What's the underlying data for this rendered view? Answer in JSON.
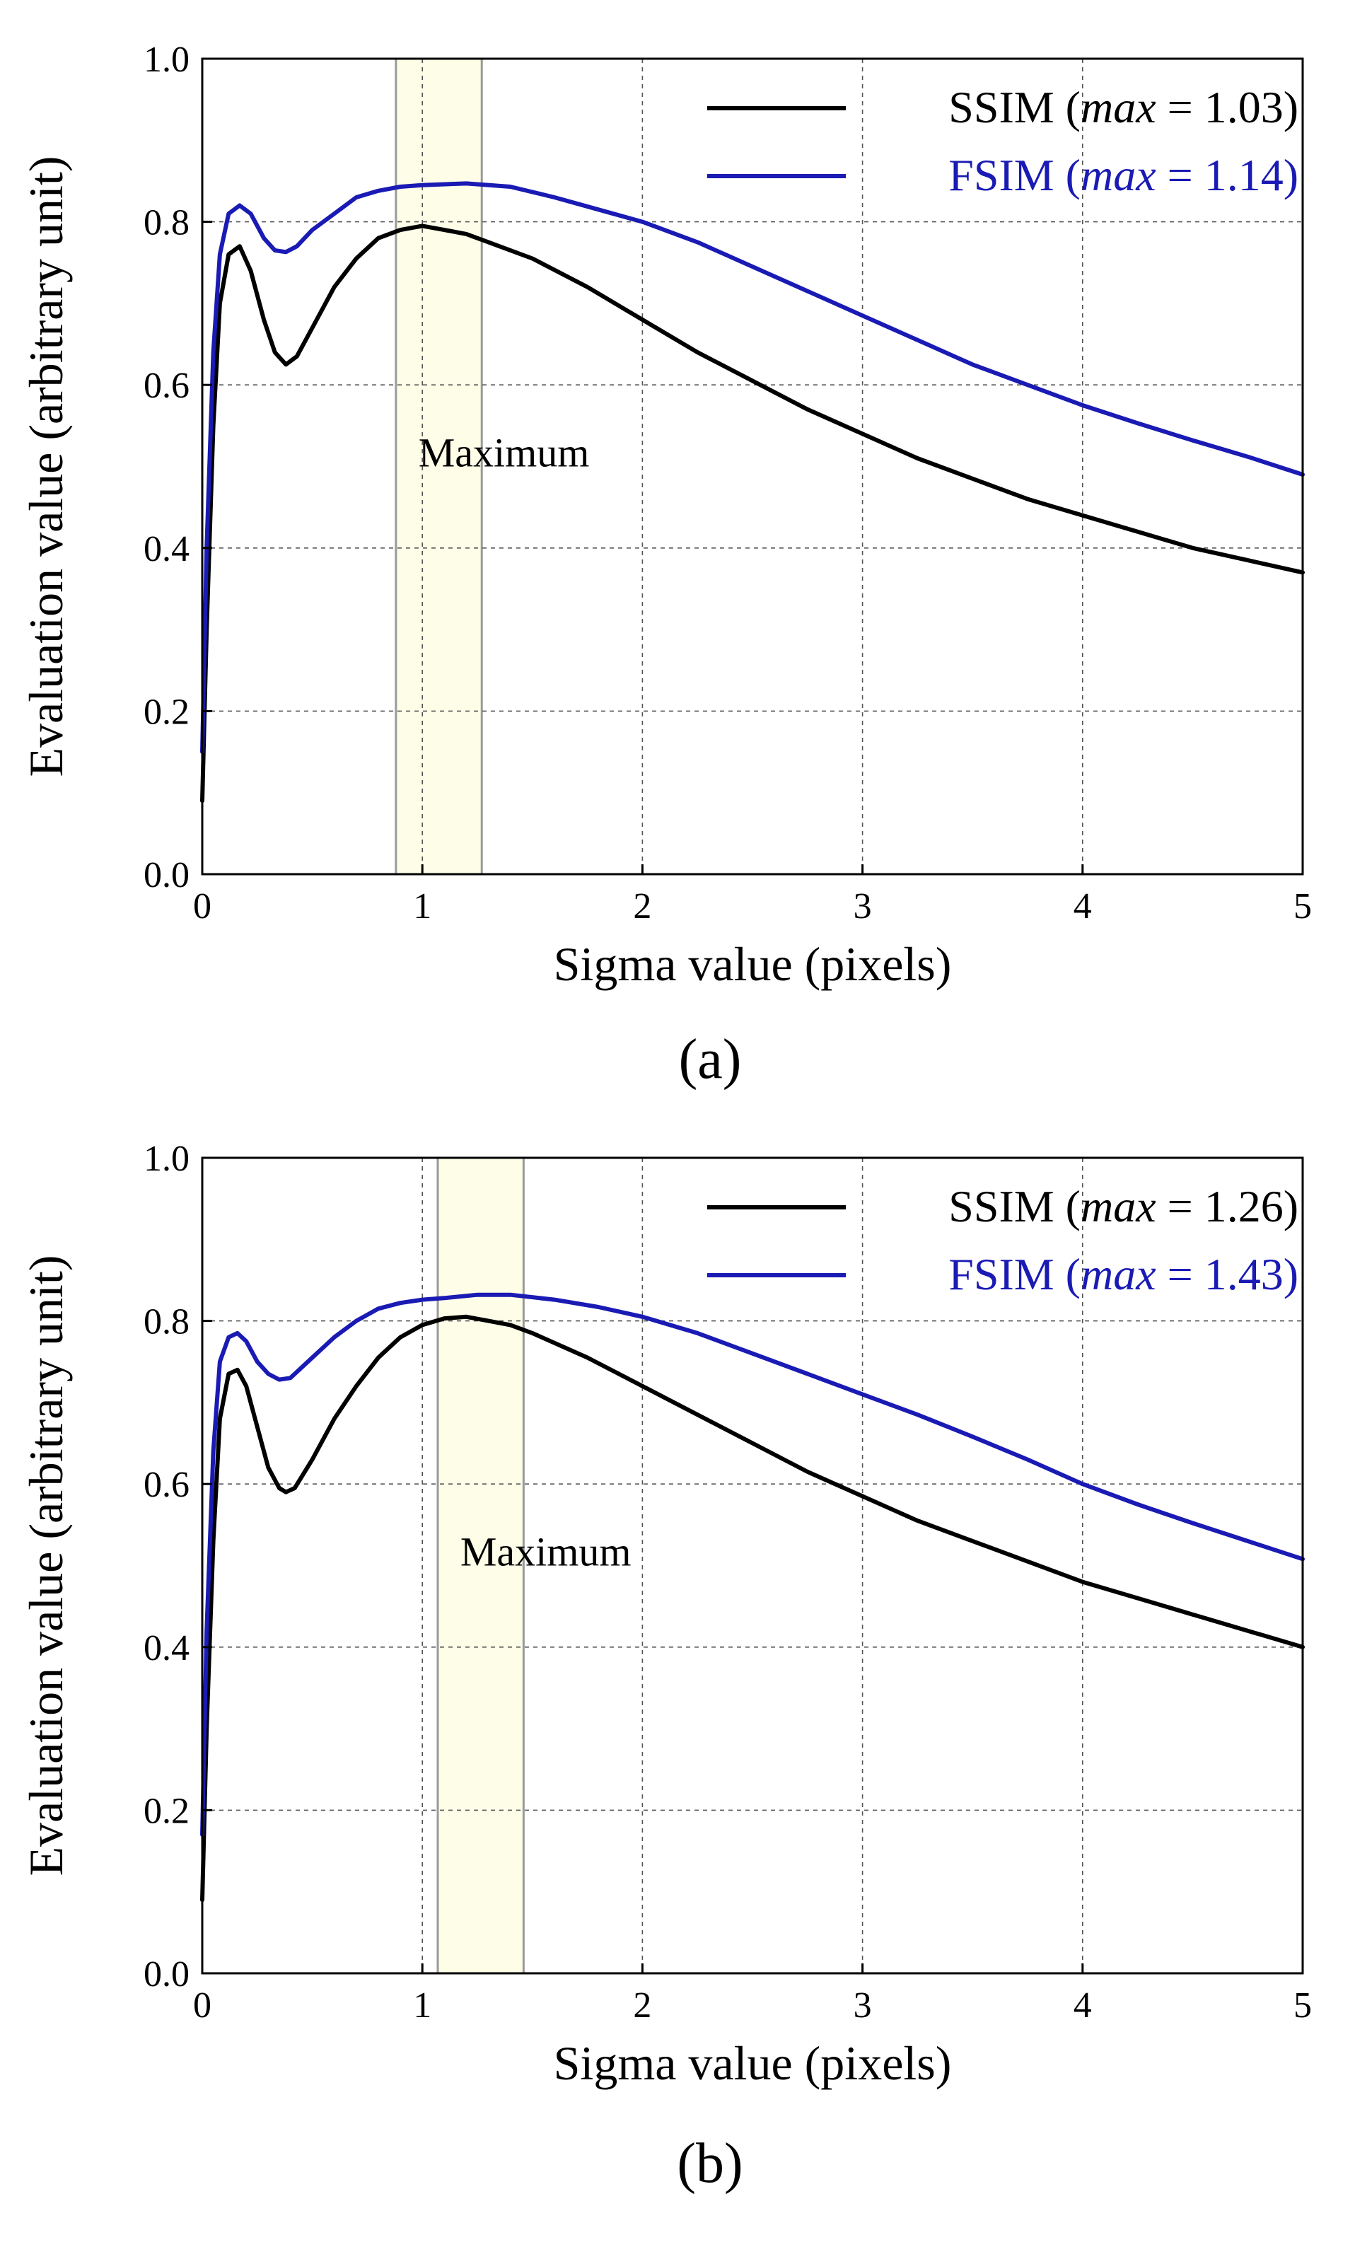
{
  "chart_data": [
    {
      "type": "line",
      "panel_label": "(a)",
      "xlabel": "Sigma value (pixels)",
      "ylabel": "Evaluation value (arbitrary unit)",
      "xlim": [
        0,
        5
      ],
      "ylim": [
        0,
        1.0
      ],
      "x_ticks": [
        "0",
        "1",
        "2",
        "3",
        "4",
        "5"
      ],
      "y_ticks": [
        "0.0",
        "0.2",
        "0.4",
        "0.6",
        "0.8",
        "1.0"
      ],
      "grid": true,
      "legend_position": "top-right",
      "annotation": "Maximum",
      "highlight_band": {
        "x_start": 0.88,
        "x_end": 1.27
      },
      "series": [
        {
          "name": "SSIM",
          "legend_prefix": "SSIM (",
          "legend_italic": "max",
          "legend_suffix": " = 1.03)",
          "color": "#000000",
          "points": [
            [
              0.0,
              0.09
            ],
            [
              0.02,
              0.3
            ],
            [
              0.05,
              0.55
            ],
            [
              0.08,
              0.7
            ],
            [
              0.12,
              0.76
            ],
            [
              0.17,
              0.77
            ],
            [
              0.22,
              0.74
            ],
            [
              0.28,
              0.68
            ],
            [
              0.33,
              0.64
            ],
            [
              0.38,
              0.625
            ],
            [
              0.43,
              0.635
            ],
            [
              0.5,
              0.67
            ],
            [
              0.6,
              0.72
            ],
            [
              0.7,
              0.755
            ],
            [
              0.8,
              0.78
            ],
            [
              0.9,
              0.79
            ],
            [
              1.0,
              0.795
            ],
            [
              1.1,
              0.79
            ],
            [
              1.2,
              0.785
            ],
            [
              1.3,
              0.775
            ],
            [
              1.5,
              0.755
            ],
            [
              1.75,
              0.72
            ],
            [
              2.0,
              0.68
            ],
            [
              2.25,
              0.64
            ],
            [
              2.5,
              0.605
            ],
            [
              2.75,
              0.57
            ],
            [
              3.0,
              0.54
            ],
            [
              3.25,
              0.51
            ],
            [
              3.5,
              0.485
            ],
            [
              3.75,
              0.46
            ],
            [
              4.0,
              0.44
            ],
            [
              4.25,
              0.42
            ],
            [
              4.5,
              0.4
            ],
            [
              4.75,
              0.385
            ],
            [
              5.0,
              0.37
            ]
          ]
        },
        {
          "name": "FSIM",
          "legend_prefix": "FSIM (",
          "legend_italic": "max",
          "legend_suffix": " = 1.14)",
          "color": "#1a1ab4",
          "points": [
            [
              0.0,
              0.15
            ],
            [
              0.02,
              0.4
            ],
            [
              0.05,
              0.64
            ],
            [
              0.08,
              0.76
            ],
            [
              0.12,
              0.81
            ],
            [
              0.17,
              0.82
            ],
            [
              0.22,
              0.81
            ],
            [
              0.28,
              0.78
            ],
            [
              0.33,
              0.765
            ],
            [
              0.38,
              0.763
            ],
            [
              0.43,
              0.77
            ],
            [
              0.5,
              0.79
            ],
            [
              0.6,
              0.81
            ],
            [
              0.7,
              0.83
            ],
            [
              0.8,
              0.838
            ],
            [
              0.9,
              0.843
            ],
            [
              1.0,
              0.845
            ],
            [
              1.2,
              0.847
            ],
            [
              1.4,
              0.843
            ],
            [
              1.6,
              0.83
            ],
            [
              1.8,
              0.815
            ],
            [
              2.0,
              0.8
            ],
            [
              2.25,
              0.775
            ],
            [
              2.5,
              0.745
            ],
            [
              2.75,
              0.715
            ],
            [
              3.0,
              0.685
            ],
            [
              3.25,
              0.655
            ],
            [
              3.5,
              0.625
            ],
            [
              3.75,
              0.6
            ],
            [
              4.0,
              0.575
            ],
            [
              4.25,
              0.553
            ],
            [
              4.5,
              0.532
            ],
            [
              4.75,
              0.512
            ],
            [
              5.0,
              0.49
            ]
          ]
        }
      ]
    },
    {
      "type": "line",
      "panel_label": "(b)",
      "xlabel": "Sigma value (pixels)",
      "ylabel": "Evaluation value (arbitrary unit)",
      "xlim": [
        0,
        5
      ],
      "ylim": [
        0,
        1.0
      ],
      "x_ticks": [
        "0",
        "1",
        "2",
        "3",
        "4",
        "5"
      ],
      "y_ticks": [
        "0.0",
        "0.2",
        "0.4",
        "0.6",
        "0.8",
        "1.0"
      ],
      "grid": true,
      "legend_position": "top-right",
      "annotation": "Maximum",
      "highlight_band": {
        "x_start": 1.07,
        "x_end": 1.46
      },
      "series": [
        {
          "name": "SSIM",
          "legend_prefix": "SSIM (",
          "legend_italic": "max",
          "legend_suffix": " = 1.26)",
          "color": "#000000",
          "points": [
            [
              0.0,
              0.09
            ],
            [
              0.02,
              0.3
            ],
            [
              0.05,
              0.53
            ],
            [
              0.08,
              0.68
            ],
            [
              0.12,
              0.735
            ],
            [
              0.16,
              0.74
            ],
            [
              0.2,
              0.72
            ],
            [
              0.25,
              0.67
            ],
            [
              0.3,
              0.62
            ],
            [
              0.35,
              0.595
            ],
            [
              0.38,
              0.59
            ],
            [
              0.42,
              0.595
            ],
            [
              0.5,
              0.63
            ],
            [
              0.6,
              0.68
            ],
            [
              0.7,
              0.72
            ],
            [
              0.8,
              0.755
            ],
            [
              0.9,
              0.78
            ],
            [
              1.0,
              0.795
            ],
            [
              1.1,
              0.803
            ],
            [
              1.2,
              0.805
            ],
            [
              1.3,
              0.8
            ],
            [
              1.4,
              0.795
            ],
            [
              1.5,
              0.785
            ],
            [
              1.75,
              0.755
            ],
            [
              2.0,
              0.72
            ],
            [
              2.25,
              0.685
            ],
            [
              2.5,
              0.65
            ],
            [
              2.75,
              0.615
            ],
            [
              3.0,
              0.585
            ],
            [
              3.25,
              0.555
            ],
            [
              3.5,
              0.53
            ],
            [
              3.75,
              0.505
            ],
            [
              4.0,
              0.48
            ],
            [
              4.25,
              0.46
            ],
            [
              4.5,
              0.44
            ],
            [
              4.75,
              0.42
            ],
            [
              5.0,
              0.4
            ]
          ]
        },
        {
          "name": "FSIM",
          "legend_prefix": "FSIM (",
          "legend_italic": "max",
          "legend_suffix": " = 1.43)",
          "color": "#1a1ab4",
          "points": [
            [
              0.0,
              0.17
            ],
            [
              0.02,
              0.42
            ],
            [
              0.05,
              0.64
            ],
            [
              0.08,
              0.75
            ],
            [
              0.12,
              0.78
            ],
            [
              0.16,
              0.785
            ],
            [
              0.2,
              0.775
            ],
            [
              0.25,
              0.75
            ],
            [
              0.3,
              0.735
            ],
            [
              0.35,
              0.728
            ],
            [
              0.4,
              0.73
            ],
            [
              0.5,
              0.755
            ],
            [
              0.6,
              0.78
            ],
            [
              0.7,
              0.8
            ],
            [
              0.8,
              0.815
            ],
            [
              0.9,
              0.822
            ],
            [
              1.0,
              0.826
            ],
            [
              1.1,
              0.828
            ],
            [
              1.25,
              0.832
            ],
            [
              1.4,
              0.832
            ],
            [
              1.6,
              0.826
            ],
            [
              1.8,
              0.817
            ],
            [
              2.0,
              0.805
            ],
            [
              2.25,
              0.785
            ],
            [
              2.5,
              0.76
            ],
            [
              2.75,
              0.735
            ],
            [
              3.0,
              0.71
            ],
            [
              3.25,
              0.685
            ],
            [
              3.5,
              0.658
            ],
            [
              3.75,
              0.63
            ],
            [
              4.0,
              0.6
            ],
            [
              4.25,
              0.575
            ],
            [
              4.5,
              0.552
            ],
            [
              4.75,
              0.53
            ],
            [
              5.0,
              0.508
            ]
          ]
        }
      ]
    }
  ]
}
